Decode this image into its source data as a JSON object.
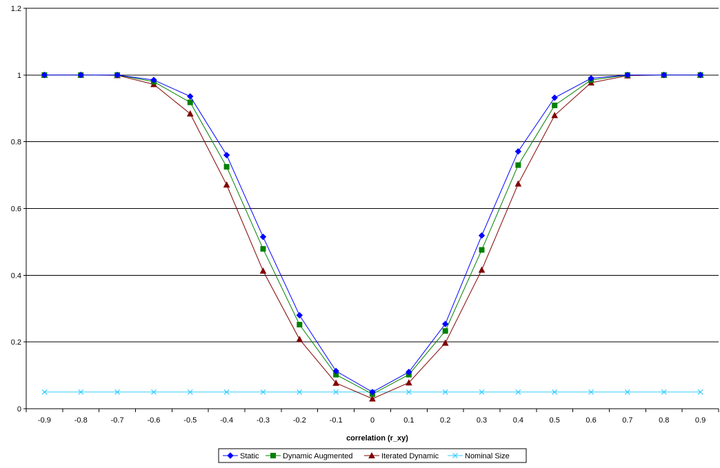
{
  "chart_data": {
    "type": "line",
    "title": "",
    "xlabel": "correlation (r_xy)",
    "ylabel": "",
    "categories": [
      "-0.9",
      "-0.8",
      "-0.7",
      "-0.6",
      "-0.5",
      "-0.4",
      "-0.3",
      "-0.2",
      "-0.1",
      "0",
      "0.1",
      "0.2",
      "0.3",
      "0.4",
      "0.5",
      "0.6",
      "0.7",
      "0.8",
      "0.9"
    ],
    "ylim": [
      0,
      1.2
    ],
    "yticks": [
      "0",
      "0.2",
      "0.4",
      "0.6",
      "0.8",
      "1",
      "1.2"
    ],
    "grid": "horizontal",
    "legend_position": "bottom",
    "series": [
      {
        "name": "Static",
        "color": "#0000FF",
        "marker": "diamond",
        "values": [
          1.0,
          1.0,
          1.0,
          0.985,
          0.936,
          0.76,
          0.515,
          0.28,
          0.113,
          0.05,
          0.11,
          0.254,
          0.519,
          0.771,
          0.932,
          0.99,
          1.0,
          1.0,
          1.0
        ]
      },
      {
        "name": "Dynamic Augmented",
        "color": "#008000",
        "marker": "square",
        "values": [
          1.0,
          1.0,
          1.0,
          0.98,
          0.918,
          0.725,
          0.479,
          0.252,
          0.102,
          0.044,
          0.102,
          0.233,
          0.476,
          0.73,
          0.909,
          0.985,
          1.0,
          1.0,
          1.0
        ]
      },
      {
        "name": "Iterated Dynamic",
        "color": "#800000",
        "marker": "triangle",
        "values": [
          1.0,
          1.0,
          0.999,
          0.972,
          0.884,
          0.671,
          0.413,
          0.208,
          0.077,
          0.03,
          0.078,
          0.197,
          0.416,
          0.674,
          0.879,
          0.977,
          0.998,
          1.0,
          1.0
        ]
      },
      {
        "name": "Nominal Size",
        "color": "#33CCFF",
        "marker": "x",
        "values": [
          0.05,
          0.05,
          0.05,
          0.05,
          0.05,
          0.05,
          0.05,
          0.05,
          0.05,
          0.05,
          0.05,
          0.05,
          0.05,
          0.05,
          0.05,
          0.05,
          0.05,
          0.05,
          0.05
        ]
      }
    ]
  }
}
